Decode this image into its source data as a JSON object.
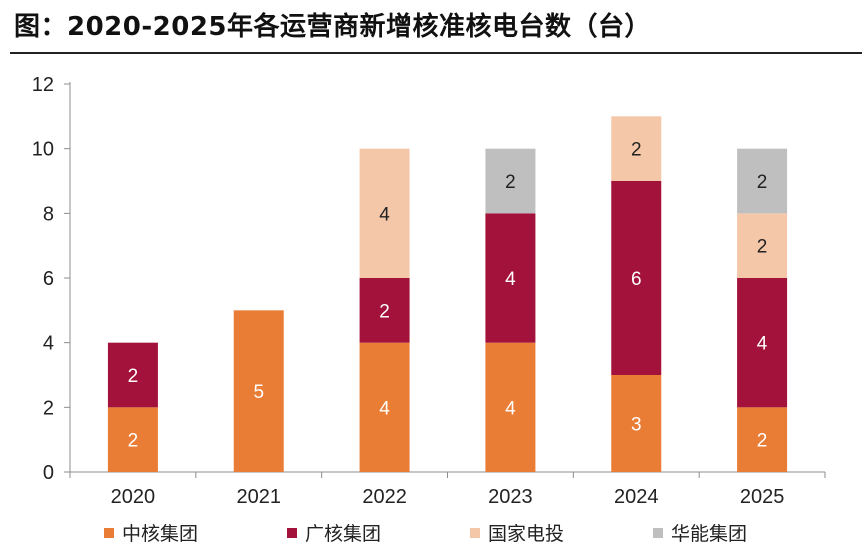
{
  "title": "图：2020-2025年各运营商新增核准核电台数（台）",
  "chart_data": {
    "type": "bar",
    "stacked": true,
    "title": "图：2020-2025年各运营商新增核准核电台数（台）",
    "xlabel": "",
    "ylabel": "",
    "categories": [
      "2020",
      "2021",
      "2022",
      "2023",
      "2024",
      "2025"
    ],
    "ylim": [
      0,
      12
    ],
    "yticks": [
      0,
      2,
      4,
      6,
      8,
      10,
      12
    ],
    "grid": false,
    "legend_position": "bottom",
    "series": [
      {
        "name": "中核集团",
        "color": "#E97D35",
        "label_color": "#ffffff",
        "values": [
          2,
          5,
          4,
          4,
          3,
          2
        ]
      },
      {
        "name": "广核集团",
        "color": "#A3123A",
        "label_color": "#ffffff",
        "values": [
          2,
          0,
          2,
          4,
          6,
          4
        ]
      },
      {
        "name": "国家电投",
        "color": "#F4C7A8",
        "label_color": "#222222",
        "values": [
          0,
          0,
          4,
          0,
          2,
          2
        ]
      },
      {
        "name": "华能集团",
        "color": "#BFBFBF",
        "label_color": "#222222",
        "values": [
          0,
          0,
          0,
          2,
          0,
          2
        ]
      }
    ]
  }
}
